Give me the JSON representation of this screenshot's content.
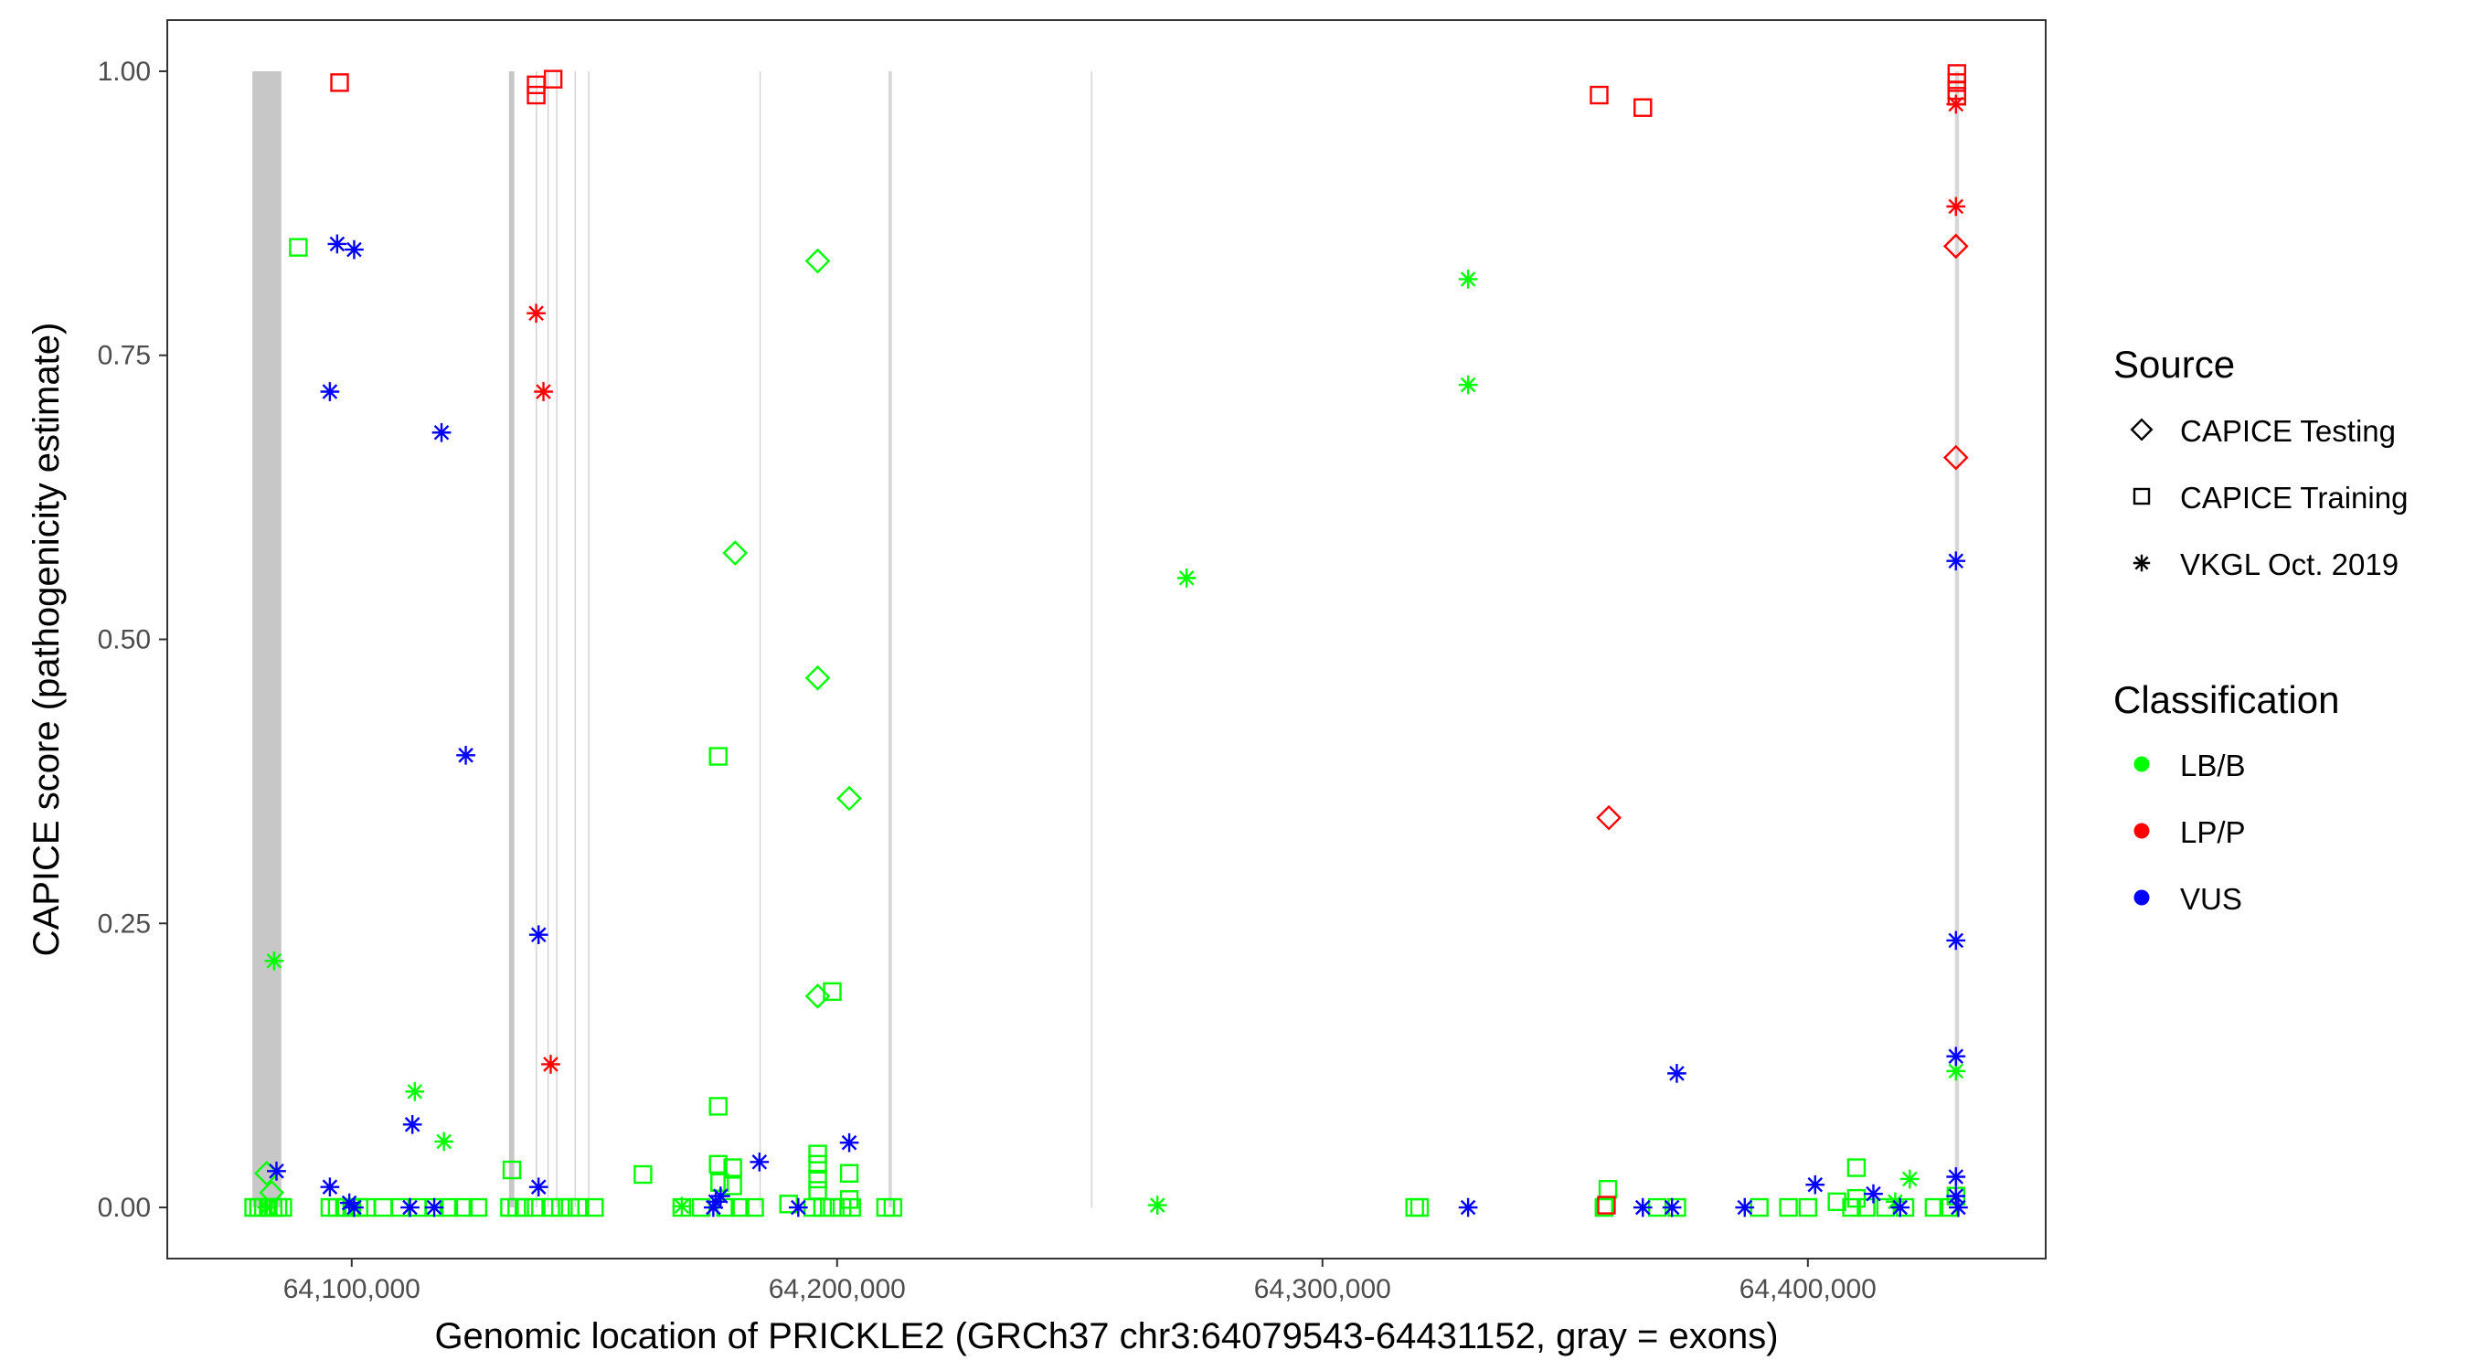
{
  "chart_data": {
    "type": "scatter",
    "title": "",
    "xlabel": "Genomic location of PRICKLE2 (GRCh37 chr3:64079543-64431152, gray = exons)",
    "ylabel": "CAPICE score (pathogenicity estimate)",
    "xlim": [
      64062000,
      64449000
    ],
    "ylim": [
      -0.045,
      1.045
    ],
    "x_ticks": [
      64100000,
      64200000,
      64300000,
      64400000
    ],
    "x_tick_labels": [
      "64,100,000",
      "64,200,000",
      "64,300,000",
      "64,400,000"
    ],
    "y_ticks": [
      0.0,
      0.25,
      0.5,
      0.75,
      1.0
    ],
    "y_tick_labels": [
      "0.00",
      "0.25",
      "0.50",
      "0.75",
      "1.00"
    ],
    "grid": false,
    "exons": [
      [
        64079543,
        64085500
      ],
      [
        64132400,
        64133500
      ],
      [
        64137900,
        64138200
      ],
      [
        64140300,
        64140600
      ],
      [
        64142100,
        64142400
      ],
      [
        64145900,
        64146200
      ],
      [
        64148700,
        64149000
      ],
      [
        64184000,
        64184300
      ],
      [
        64210600,
        64211300
      ],
      [
        64252300,
        64252600
      ],
      [
        64430300,
        64431152
      ]
    ],
    "legend": {
      "source_title": "Source",
      "source_entries": [
        {
          "label": "CAPICE Testing",
          "shape": "diamond"
        },
        {
          "label": "CAPICE Training",
          "shape": "square"
        },
        {
          "label": "VKGL Oct. 2019",
          "shape": "asterisk"
        }
      ],
      "class_title": "Classification",
      "class_entries": [
        {
          "label": "LB/B",
          "color": "#00ff00"
        },
        {
          "label": "LP/P",
          "color": "#ff0000"
        },
        {
          "label": "VUS",
          "color": "#0000ff"
        }
      ]
    },
    "colors": {
      "LB/B": "#00ff00",
      "LP/P": "#ff0000",
      "VUS": "#0000ff"
    },
    "series": [
      {
        "name": "CAPICE Training LB/B",
        "source": "CAPICE Training",
        "class": "LB/B",
        "points": [
          [
            64089000,
            0.845
          ],
          [
            64175500,
            0.397
          ],
          [
            64175500,
            0.089
          ],
          [
            64199000,
            0.19
          ],
          [
            64133000,
            0.033
          ],
          [
            64160000,
            0.029
          ],
          [
            64175500,
            0.038
          ],
          [
            64178500,
            0.035
          ],
          [
            64175800,
            0.022
          ],
          [
            64178500,
            0.019
          ],
          [
            64196000,
            0.047
          ],
          [
            64196000,
            0.038
          ],
          [
            64196000,
            0.025
          ],
          [
            64196000,
            0.015
          ],
          [
            64202500,
            0.03
          ],
          [
            64202500,
            0.007
          ],
          [
            64410000,
            0.035
          ],
          [
            64358800,
            0.016
          ],
          [
            64410000,
            0.008
          ],
          [
            64406000,
            0.005
          ],
          [
            64430500,
            0.01
          ],
          [
            64079800,
            0.0
          ],
          [
            64080800,
            0.0
          ],
          [
            64081800,
            0.0
          ],
          [
            64082800,
            0.0
          ],
          [
            64083800,
            0.0
          ],
          [
            64084800,
            0.0
          ],
          [
            64085800,
            0.0
          ],
          [
            64095500,
            0.0
          ],
          [
            64097000,
            0.0
          ],
          [
            64098500,
            0.0
          ],
          [
            64100000,
            0.0
          ],
          [
            64101500,
            0.0
          ],
          [
            64103000,
            0.0
          ],
          [
            64106500,
            0.0
          ],
          [
            64110000,
            0.0
          ],
          [
            64113500,
            0.0
          ],
          [
            64117000,
            0.0
          ],
          [
            64120000,
            0.0
          ],
          [
            64123000,
            0.0
          ],
          [
            64126000,
            0.0
          ],
          [
            64132500,
            0.0
          ],
          [
            64134000,
            0.0
          ],
          [
            64135500,
            0.0
          ],
          [
            64138000,
            0.0
          ],
          [
            64141000,
            0.0
          ],
          [
            64143000,
            0.0
          ],
          [
            64145000,
            0.0
          ],
          [
            64147000,
            0.0
          ],
          [
            64150000,
            0.0
          ],
          [
            64168000,
            0.0
          ],
          [
            64172000,
            0.0
          ],
          [
            64177000,
            0.0
          ],
          [
            64180000,
            0.0
          ],
          [
            64183000,
            0.0
          ],
          [
            64190000,
            0.003
          ],
          [
            64195000,
            0.0
          ],
          [
            64197000,
            0.0
          ],
          [
            64199000,
            0.0
          ],
          [
            64201000,
            0.0
          ],
          [
            64203000,
            0.0
          ],
          [
            64210000,
            0.0
          ],
          [
            64211500,
            0.0
          ],
          [
            64319000,
            0.0
          ],
          [
            64320000,
            0.0
          ],
          [
            64358000,
            0.0
          ],
          [
            64369000,
            0.0
          ],
          [
            64373000,
            0.0
          ],
          [
            64390000,
            0.0
          ],
          [
            64396000,
            0.0
          ],
          [
            64400000,
            0.0
          ],
          [
            64409000,
            0.0
          ],
          [
            64412000,
            0.0
          ],
          [
            64416000,
            0.0
          ],
          [
            64420000,
            0.0
          ],
          [
            64426000,
            0.0
          ],
          [
            64429000,
            0.0
          ]
        ]
      },
      {
        "name": "CAPICE Training LP/P",
        "source": "CAPICE Training",
        "class": "LP/P",
        "points": [
          [
            64097500,
            0.99
          ],
          [
            64138000,
            0.988
          ],
          [
            64138000,
            0.979
          ],
          [
            64141500,
            0.993
          ],
          [
            64357000,
            0.979
          ],
          [
            64366000,
            0.968
          ],
          [
            64430700,
            0.998
          ],
          [
            64430700,
            0.99
          ],
          [
            64430700,
            0.983
          ],
          [
            64430700,
            0.978
          ],
          [
            64358500,
            0.002
          ]
        ]
      },
      {
        "name": "CAPICE Testing LB/B",
        "source": "CAPICE Testing",
        "class": "LB/B",
        "points": [
          [
            64196000,
            0.833
          ],
          [
            64179000,
            0.576
          ],
          [
            64196000,
            0.466
          ],
          [
            64202500,
            0.36
          ],
          [
            64196000,
            0.186
          ],
          [
            64082500,
            0.03
          ],
          [
            64083500,
            0.013
          ]
        ]
      },
      {
        "name": "CAPICE Testing LP/P",
        "source": "CAPICE Testing",
        "class": "LP/P",
        "points": [
          [
            64430500,
            0.846
          ],
          [
            64430500,
            0.66
          ],
          [
            64359000,
            0.343
          ]
        ]
      },
      {
        "name": "VKGL Oct. 2019 LB/B",
        "source": "VKGL Oct. 2019",
        "class": "LB/B",
        "points": [
          [
            64084000,
            0.217
          ],
          [
            64113000,
            0.102
          ],
          [
            64119000,
            0.058
          ],
          [
            64330000,
            0.817
          ],
          [
            64330000,
            0.724
          ],
          [
            64272000,
            0.554
          ],
          [
            64266000,
            0.002
          ],
          [
            64430500,
            0.12
          ],
          [
            64421000,
            0.025
          ],
          [
            64168000,
            0.001
          ],
          [
            64418000,
            0.005
          ],
          [
            64082500,
            0.0
          ]
        ]
      },
      {
        "name": "VKGL Oct. 2019 LP/P",
        "source": "VKGL Oct. 2019",
        "class": "LP/P",
        "points": [
          [
            64138000,
            0.787
          ],
          [
            64139500,
            0.718
          ],
          [
            64141000,
            0.126
          ],
          [
            64430500,
            0.971
          ],
          [
            64430500,
            0.881
          ]
        ]
      },
      {
        "name": "VKGL Oct. 2019 VUS",
        "source": "VKGL Oct. 2019",
        "class": "VUS",
        "points": [
          [
            64097000,
            0.848
          ],
          [
            64100500,
            0.843
          ],
          [
            64095500,
            0.718
          ],
          [
            64118500,
            0.682
          ],
          [
            64123500,
            0.398
          ],
          [
            64138500,
            0.24
          ],
          [
            64112500,
            0.073
          ],
          [
            64084500,
            0.032
          ],
          [
            64095500,
            0.018
          ],
          [
            64138500,
            0.018
          ],
          [
            64184000,
            0.04
          ],
          [
            64202500,
            0.057
          ],
          [
            64176000,
            0.01
          ],
          [
            64175000,
            0.005
          ],
          [
            64373000,
            0.118
          ],
          [
            64401500,
            0.02
          ],
          [
            64413500,
            0.012
          ],
          [
            64430500,
            0.569
          ],
          [
            64430500,
            0.235
          ],
          [
            64430500,
            0.133
          ],
          [
            64430500,
            0.027
          ],
          [
            64430500,
            0.01
          ],
          [
            64099500,
            0.004
          ],
          [
            64100500,
            0.0
          ],
          [
            64112000,
            0.0
          ],
          [
            64117000,
            0.0
          ],
          [
            64174500,
            0.0
          ],
          [
            64192000,
            0.0
          ],
          [
            64330000,
            0.0
          ],
          [
            64366000,
            0.0
          ],
          [
            64372000,
            0.0
          ],
          [
            64387000,
            0.0
          ],
          [
            64419000,
            0.0
          ],
          [
            64431000,
            0.0
          ]
        ]
      }
    ]
  }
}
